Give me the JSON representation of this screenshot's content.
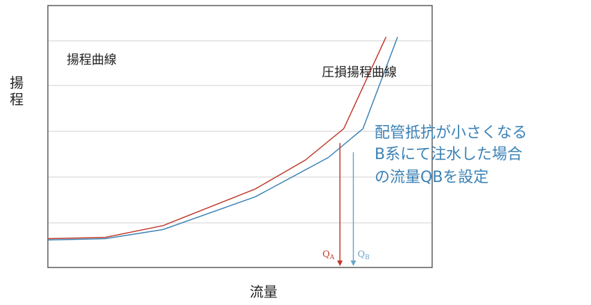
{
  "chart_data": {
    "type": "line",
    "title": "",
    "ylabel": "揚程",
    "xlabel": "流量",
    "grid": "horizontal",
    "xlim": [
      0,
      10
    ],
    "ylim": [
      0,
      10
    ],
    "series": [
      {
        "name": "揚程曲線",
        "color": "#c0392b",
        "x": [
          0,
          1.5,
          3,
          5.4,
          6.7,
          7.7,
          8.8
        ],
        "y": [
          1.1,
          1.15,
          1.6,
          3.0,
          4.1,
          5.3,
          8.8
        ]
      },
      {
        "name": "圧損揚程曲線",
        "color": "#3b82b6",
        "x": [
          0,
          1.5,
          3,
          5.4,
          7.3,
          8.2,
          9.1
        ],
        "y": [
          1.05,
          1.1,
          1.45,
          2.7,
          4.2,
          5.3,
          8.8
        ]
      }
    ],
    "markers": [
      {
        "label": "QA",
        "text": "Q",
        "sub": "A",
        "color": "#c0392b",
        "x": 7.6,
        "y_top": 4.75
      },
      {
        "label": "QB",
        "text": "Q",
        "sub": "B",
        "color": "#6aa6c8",
        "x": 7.95,
        "y_top": 4.4
      }
    ],
    "annotation": {
      "lines": [
        "配管抵抗が小さくなる",
        "B系にて注水した場合",
        "の流量QBを設定"
      ],
      "color": "#3b82b6"
    }
  }
}
